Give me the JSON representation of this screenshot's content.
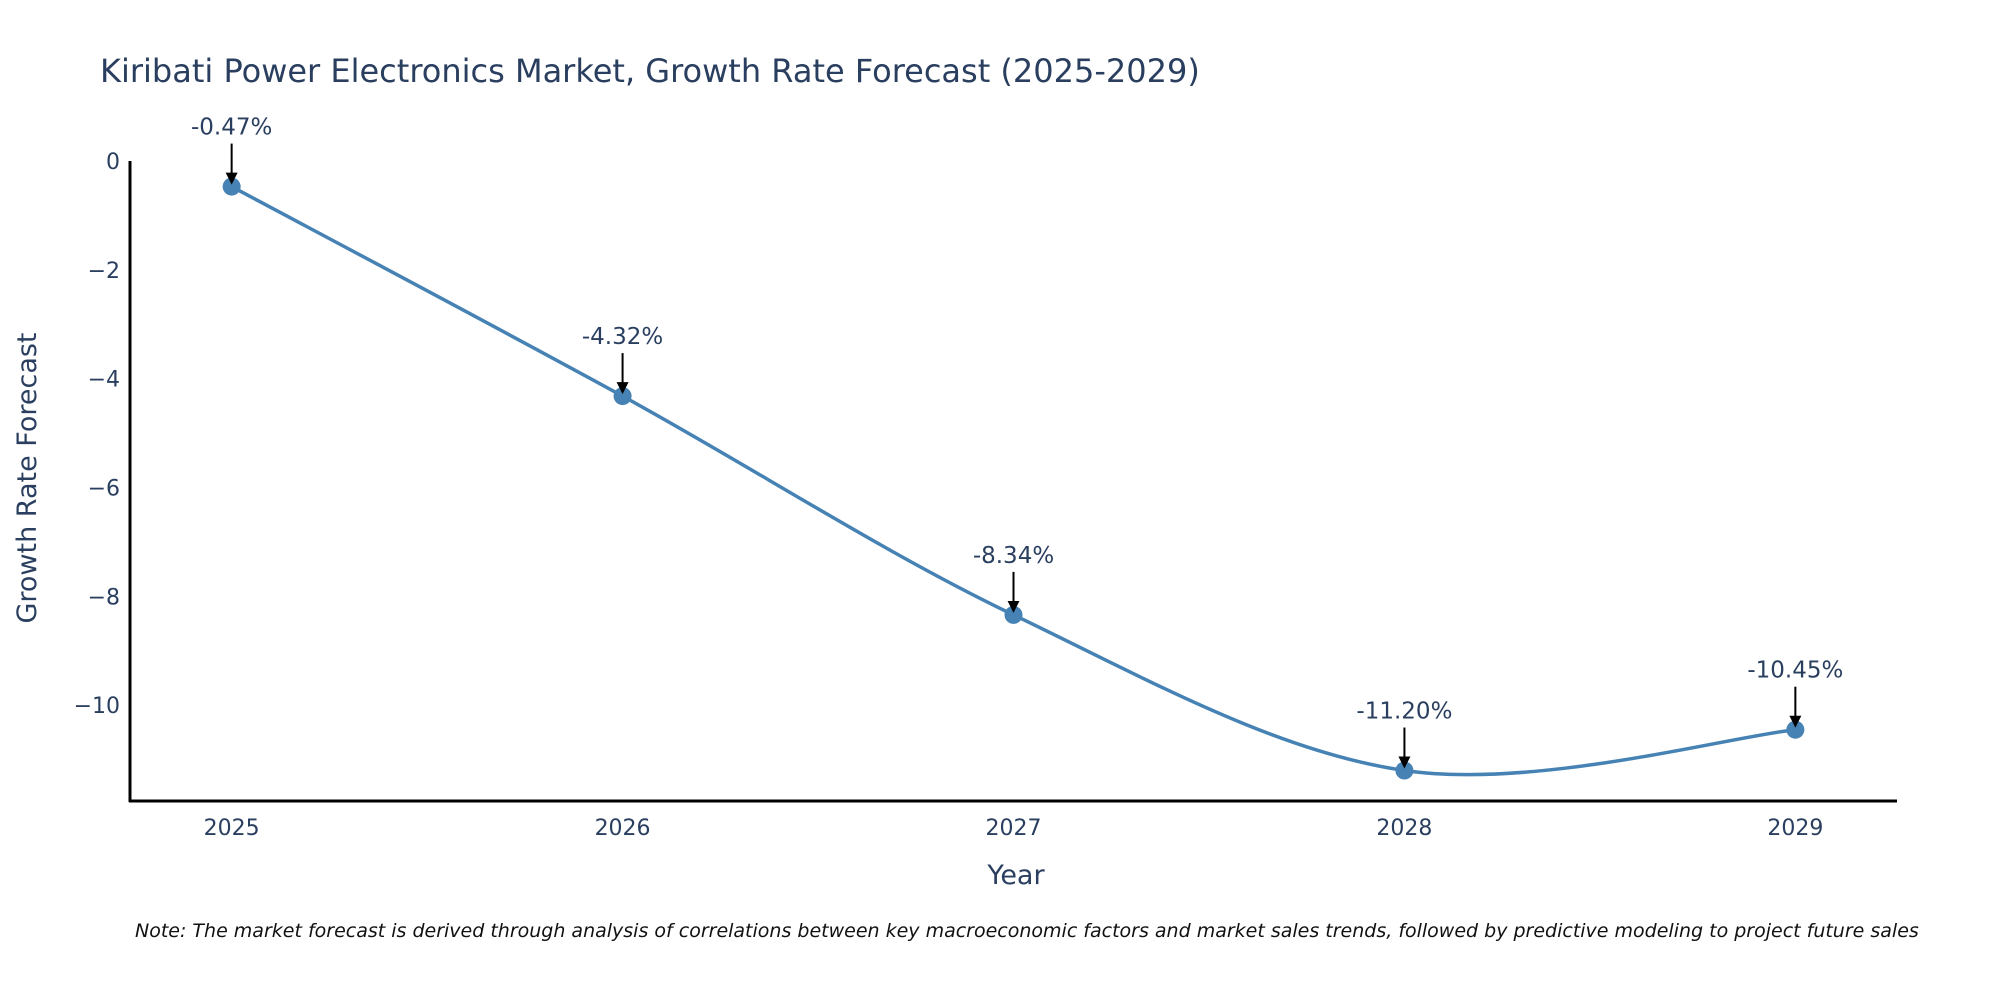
{
  "chart_data": {
    "type": "line",
    "title": "Kiribati Power Electronics Market, Growth Rate Forecast (2025-2029)",
    "xlabel": "Year",
    "ylabel": "Growth Rate Forecast",
    "categories": [
      "2025",
      "2026",
      "2027",
      "2028",
      "2029"
    ],
    "series": [
      {
        "name": "Growth Rate Forecast",
        "values": [
          -0.47,
          -4.32,
          -8.34,
          -11.2,
          -10.45
        ],
        "color": "#4682b4",
        "line_shape": "spline",
        "markers": true
      }
    ],
    "annotations": [
      "-0.47%",
      "-4.32%",
      "-8.34%",
      "-11.20%",
      "-10.45%"
    ],
    "annotation_arrow_color": "#000000",
    "y_ticks": [
      0,
      -2,
      -4,
      -6,
      -8,
      -10
    ],
    "y_tick_labels": [
      "0",
      "−2",
      "−4",
      "−6",
      "−8",
      "−10"
    ],
    "ylim": [
      -11.76,
      0
    ],
    "xlim": [
      2024.74,
      2029.26
    ],
    "grid": false,
    "legend": "none"
  },
  "note": "Note: The market forecast is derived through analysis of correlations between key macroeconomic factors and market sales trends, followed by predictive modeling to project future sales"
}
